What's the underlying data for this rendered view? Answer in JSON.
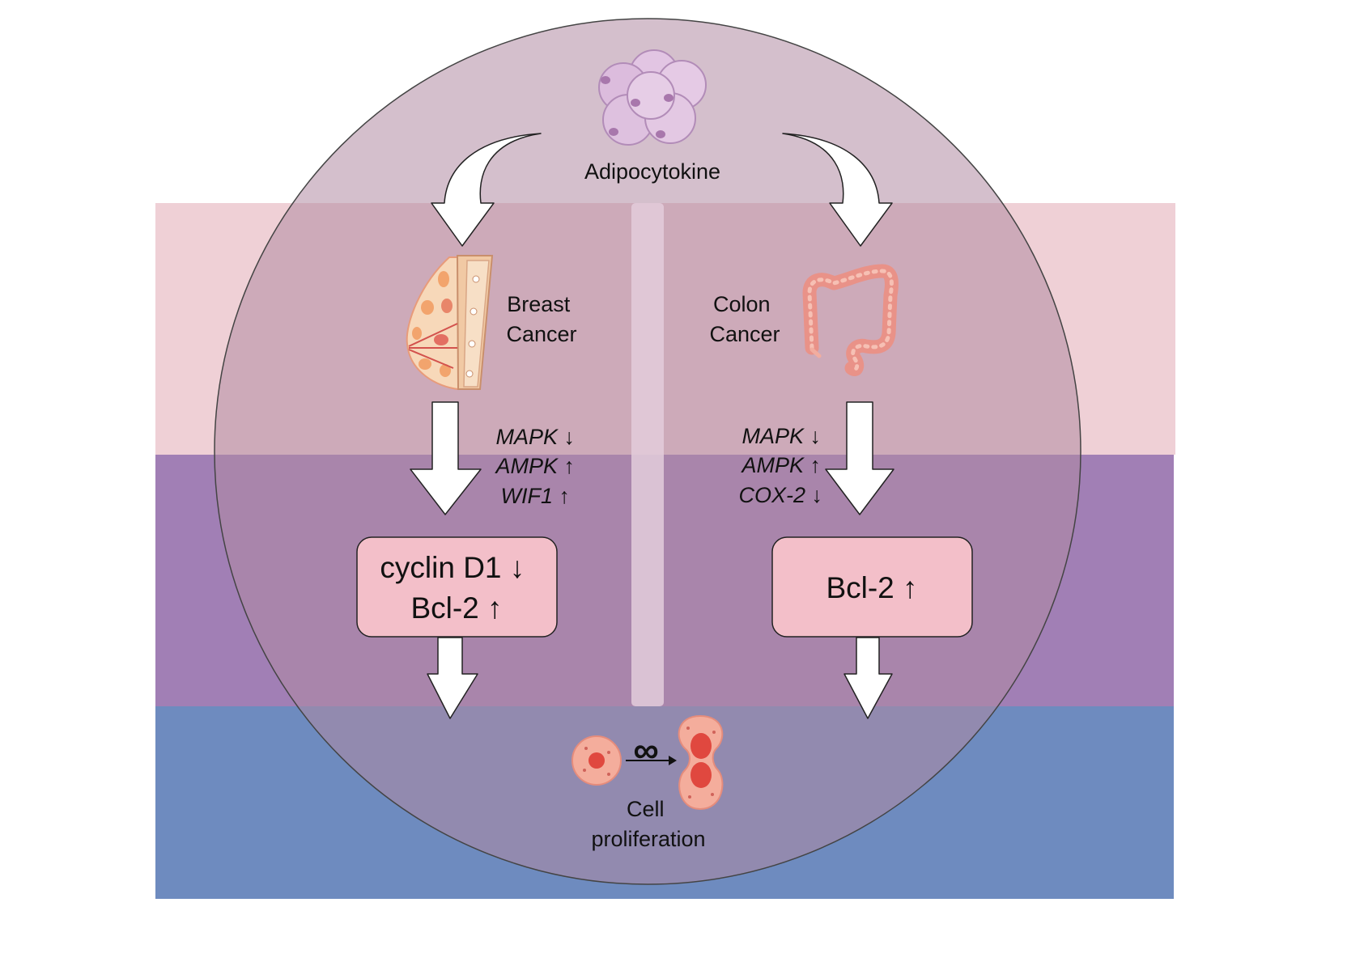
{
  "source": {
    "label": "Adipocytokine",
    "icon": "adipocyte-cluster-icon"
  },
  "branches": [
    {
      "id": "breast",
      "cancer_label_lines": [
        "Breast",
        "Cancer"
      ],
      "organ_icon": "breast-tissue-icon",
      "regulators": [
        {
          "gene": "MAPK",
          "arrow": "↓"
        },
        {
          "gene": "AMPK",
          "arrow": "↑"
        },
        {
          "gene": "WIF1",
          "arrow": "↑"
        }
      ],
      "effect_lines": [
        "cyclin D1 ↓",
        "Bcl-2 ↑"
      ]
    },
    {
      "id": "colon",
      "cancer_label_lines": [
        "Colon",
        "Cancer"
      ],
      "organ_icon": "colon-icon",
      "regulators": [
        {
          "gene": "MAPK",
          "arrow": "↓"
        },
        {
          "gene": "AMPK",
          "arrow": "↑"
        },
        {
          "gene": "COX-2",
          "arrow": "↓"
        }
      ],
      "effect_lines": [
        "Bcl-2 ↑"
      ]
    }
  ],
  "outcome": {
    "label_lines": [
      "Cell",
      "proliferation"
    ],
    "icon": "cell-division-infinity-icon"
  },
  "colors": {
    "band_top": "#efd0d6",
    "band_middle": "#a17fb5",
    "band_bottom": "#6e8bbf",
    "circle_overlay": "#b08aa2",
    "effect_box": "#f3bfc9",
    "divider": "#e3cdda",
    "arrow_fill": "#ffffff"
  }
}
